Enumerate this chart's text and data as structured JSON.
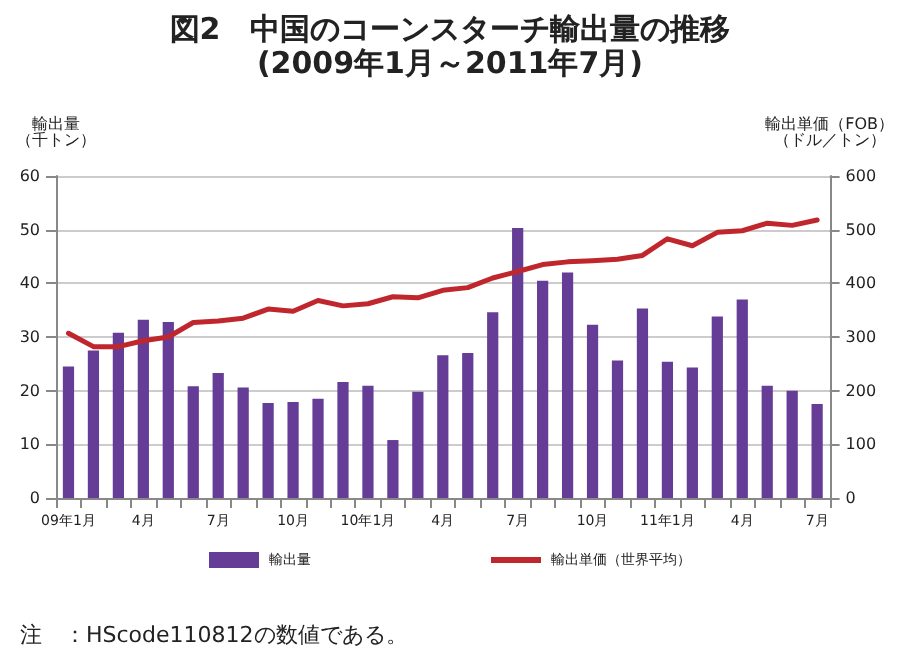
{
  "chart_data": {
    "type": "bar",
    "title": "図2　中国のコーンスターチ輸出量の推移",
    "subtitle": "(2009年1月～2011年7月)",
    "ylabel": "輸出量（千トン）",
    "y2label": "輸出単価（FOB）（ドル／トン）",
    "categories": [
      "09年1月",
      null,
      null,
      "4月",
      null,
      null,
      "7月",
      null,
      null,
      "10月",
      null,
      null,
      "10年1月",
      null,
      null,
      "4月",
      null,
      null,
      "7月",
      null,
      null,
      "10月",
      null,
      null,
      "11年1月",
      null,
      null,
      "4月",
      null,
      null,
      "7月"
    ],
    "series": [
      {
        "name": "輸出量",
        "color": "#663d96",
        "values": [
          24.5,
          27.5,
          30.8,
          33.2,
          32.8,
          20.8,
          23.3,
          20.6,
          17.7,
          17.9,
          18.5,
          21.6,
          20.9,
          10.8,
          19.8,
          26.6,
          27.0,
          34.6,
          50.3,
          40.5,
          42.0,
          32.3,
          25.6,
          35.3,
          25.4,
          24.3,
          33.8,
          37.0,
          20.9,
          20.0,
          17.5
        ]
      },
      {
        "name": "輸出単価（世界平均）",
        "type": "line",
        "axis": "y2",
        "color": "#c0272d",
        "values": [
          307,
          282,
          282,
          293,
          300,
          327,
          330,
          335,
          352,
          348,
          368,
          358,
          362,
          375,
          373,
          387,
          392,
          410,
          422,
          435,
          440,
          442,
          445,
          452,
          483,
          470,
          495,
          498,
          512,
          508,
          518
        ]
      }
    ],
    "ylim": [
      0,
      60
    ],
    "yticks": [
      0,
      10,
      20,
      30,
      40,
      50,
      60
    ],
    "y2lim": [
      0,
      600
    ],
    "y2ticks": [
      0,
      100,
      200,
      300,
      400,
      500,
      600
    ],
    "grid": "y",
    "legend": "bottom",
    "marker": "none",
    "line_style": "solid",
    "annotations": [
      "注　：HScode110812の数値である。"
    ]
  }
}
